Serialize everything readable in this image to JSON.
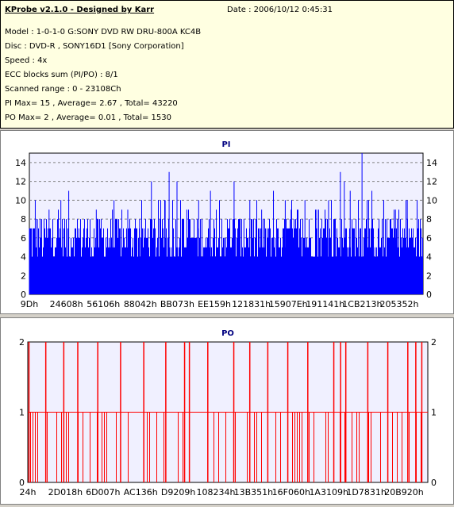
{
  "header": {
    "title": "KProbe v2.1.0 - Designed by Karr",
    "date": "Date : 2006/10/12 0:45:31",
    "lines": [
      "Model : 1-0-1-0 G:SONY    DVD RW DRU-800A  KC4B",
      "Disc : DVD-R , SONY16D1 [Sony Corporation]",
      "Speed : 4x",
      "ECC blocks sum (PI/PO) : 8/1",
      "Scanned range : 0 - 23108Ch",
      "PI Max= 15 , Average= 2.67 , Total= 43220",
      "PO Max= 2 , Average= 0.01 , Total= 1530"
    ]
  },
  "colors": {
    "pi": "#0000ff",
    "po": "#ff0000",
    "title": "#000080",
    "plot_bg": "#f0f0ff"
  },
  "chart_data": [
    {
      "type": "bar",
      "title": "PI",
      "ylim": [
        0,
        15
      ],
      "yticks": [
        0,
        2,
        4,
        6,
        8,
        10,
        12,
        14
      ],
      "grid": true,
      "x_tick_labels": [
        "9Dh",
        "24608h",
        "56106h",
        "88042h",
        "BB073h",
        "EE159h",
        "121831h",
        "15907Eh",
        "191141h",
        "1CB213h",
        "205352h"
      ],
      "baseline_range": [
        4,
        8
      ],
      "peaks": [
        {
          "x": 0.0,
          "y": 7
        },
        {
          "x": 0.015,
          "y": 10
        },
        {
          "x": 0.02,
          "y": 8
        },
        {
          "x": 0.05,
          "y": 9
        },
        {
          "x": 0.08,
          "y": 10
        },
        {
          "x": 0.1,
          "y": 11
        },
        {
          "x": 0.14,
          "y": 8
        },
        {
          "x": 0.17,
          "y": 9
        },
        {
          "x": 0.215,
          "y": 10
        },
        {
          "x": 0.25,
          "y": 9
        },
        {
          "x": 0.28,
          "y": 8
        },
        {
          "x": 0.31,
          "y": 12
        },
        {
          "x": 0.345,
          "y": 10
        },
        {
          "x": 0.355,
          "y": 13
        },
        {
          "x": 0.375,
          "y": 12
        },
        {
          "x": 0.4,
          "y": 9
        },
        {
          "x": 0.43,
          "y": 10
        },
        {
          "x": 0.46,
          "y": 11
        },
        {
          "x": 0.52,
          "y": 12
        },
        {
          "x": 0.545,
          "y": 8
        },
        {
          "x": 0.56,
          "y": 10
        },
        {
          "x": 0.59,
          "y": 9
        },
        {
          "x": 0.62,
          "y": 11
        },
        {
          "x": 0.65,
          "y": 10
        },
        {
          "x": 0.665,
          "y": 9
        },
        {
          "x": 0.7,
          "y": 10
        },
        {
          "x": 0.73,
          "y": 9
        },
        {
          "x": 0.76,
          "y": 10
        },
        {
          "x": 0.79,
          "y": 13
        },
        {
          "x": 0.8,
          "y": 12
        },
        {
          "x": 0.815,
          "y": 11
        },
        {
          "x": 0.845,
          "y": 15
        },
        {
          "x": 0.87,
          "y": 11
        },
        {
          "x": 0.9,
          "y": 10
        },
        {
          "x": 0.93,
          "y": 9
        },
        {
          "x": 0.96,
          "y": 10
        },
        {
          "x": 0.985,
          "y": 9
        }
      ]
    },
    {
      "type": "bar",
      "title": "PO",
      "ylim": [
        0,
        2
      ],
      "yticks": [
        0,
        1,
        2
      ],
      "grid": true,
      "x_tick_labels": [
        "24h",
        "2D018h",
        "6D007h",
        "AC136h",
        "D9209h",
        "108234h",
        "13B351h",
        "16F060h",
        "1A3109h",
        "1D7831h",
        "20B920h"
      ],
      "peaks_at_2": [
        0.003,
        0.045,
        0.09,
        0.125,
        0.175,
        0.232,
        0.29,
        0.345,
        0.392,
        0.404,
        0.45,
        0.515,
        0.555,
        0.6,
        0.65,
        0.7,
        0.765,
        0.782,
        0.795,
        0.85,
        0.9,
        0.95,
        0.97,
        0.985
      ]
    }
  ]
}
